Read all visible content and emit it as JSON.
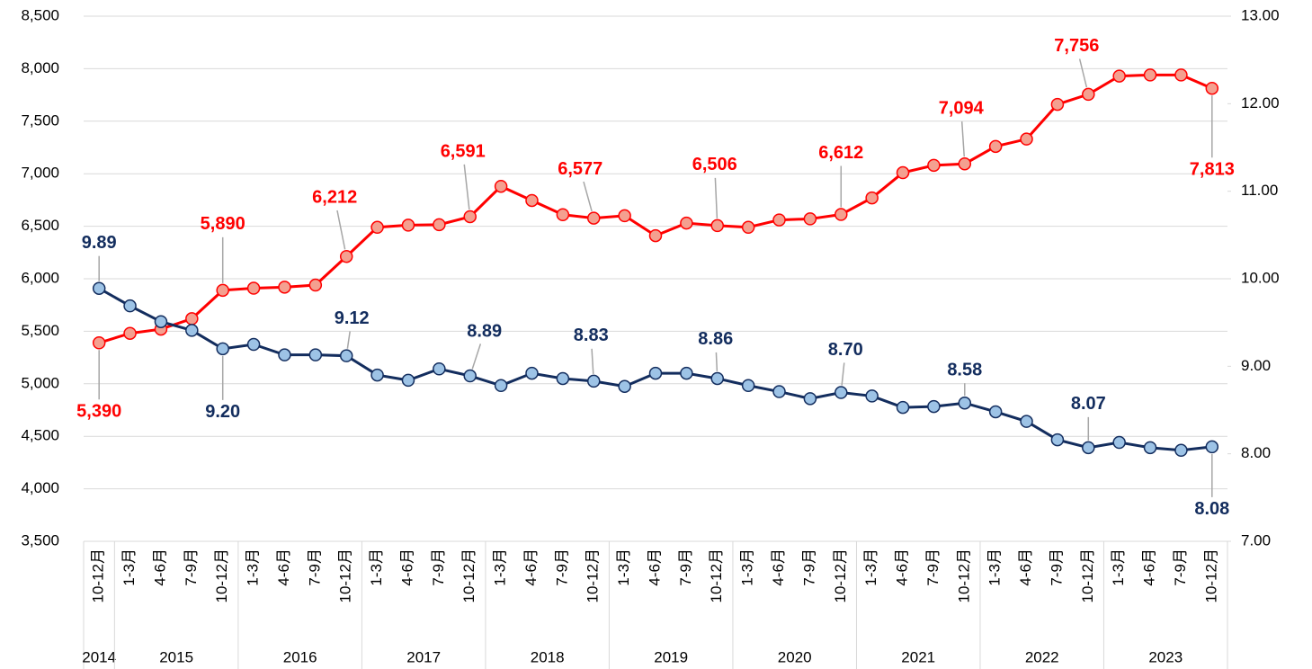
{
  "chart_data": {
    "type": "line",
    "categories": [
      "10-12月",
      "1-3月",
      "4-6月",
      "7-9月",
      "10-12月",
      "1-3月",
      "4-6月",
      "7-9月",
      "10-12月",
      "1-3月",
      "4-6月",
      "7-9月",
      "10-12月",
      "1-3月",
      "4-6月",
      "7-9月",
      "10-12月",
      "1-3月",
      "4-6月",
      "7-9月",
      "10-12月",
      "1-3月",
      "4-6月",
      "7-9月",
      "10-12月",
      "1-3月",
      "4-6月",
      "7-9月",
      "10-12月",
      "1-3月",
      "4-6月",
      "7-9月",
      "10-12月",
      "1-3月",
      "4-6月",
      "7-9月",
      "10-12月"
    ],
    "years": [
      "2014",
      "2015",
      "2015",
      "2015",
      "2015",
      "2016",
      "2016",
      "2016",
      "2016",
      "2017",
      "2017",
      "2017",
      "2017",
      "2018",
      "2018",
      "2018",
      "2018",
      "2019",
      "2019",
      "2019",
      "2019",
      "2020",
      "2020",
      "2020",
      "2020",
      "2021",
      "2021",
      "2021",
      "2021",
      "2022",
      "2022",
      "2022",
      "2022",
      "2023",
      "2023",
      "2023",
      "2023"
    ],
    "ylim": [
      3500,
      8500
    ],
    "yticks": [
      {
        "value": 3500,
        "label": "3,500"
      },
      {
        "value": 4000,
        "label": "4,000"
      },
      {
        "value": 4500,
        "label": "4,500"
      },
      {
        "value": 5000,
        "label": "5,000"
      },
      {
        "value": 5500,
        "label": "5,500"
      },
      {
        "value": 6000,
        "label": "6,000"
      },
      {
        "value": 6500,
        "label": "6,500"
      },
      {
        "value": 7000,
        "label": "7,000"
      },
      {
        "value": 7500,
        "label": "7,500"
      },
      {
        "value": 8000,
        "label": "8,000"
      },
      {
        "value": 8500,
        "label": "8,500"
      }
    ],
    "y2lim": [
      7,
      13
    ],
    "y2ticks": [
      {
        "value": 7,
        "label": "7.00"
      },
      {
        "value": 8,
        "label": "8.00"
      },
      {
        "value": 9,
        "label": "9.00"
      },
      {
        "value": 10,
        "label": "10.00"
      },
      {
        "value": 11,
        "label": "11.00"
      },
      {
        "value": 12,
        "label": "12.00"
      },
      {
        "value": 13,
        "label": "13.00"
      }
    ],
    "grid": true,
    "series": [
      {
        "color": "#ff0000",
        "marker_color": "#f4a090",
        "axis": "y",
        "values": [
          5390,
          5480,
          5520,
          5620,
          5890,
          5910,
          5920,
          5940,
          6212,
          6490,
          6510,
          6515,
          6591,
          6880,
          6745,
          6610,
          6577,
          6600,
          6410,
          6530,
          6506,
          6490,
          6560,
          6570,
          6612,
          6770,
          7010,
          7080,
          7094,
          7260,
          7330,
          7660,
          7756,
          7930,
          7940,
          7940,
          7813
        ],
        "value_labels": [
          "5,390",
          null,
          null,
          null,
          "5,890",
          null,
          null,
          null,
          "6,212",
          null,
          null,
          null,
          "6,591",
          null,
          null,
          null,
          "6,577",
          null,
          null,
          null,
          "6,506",
          null,
          null,
          null,
          "6,612",
          null,
          null,
          null,
          "7,094",
          null,
          null,
          null,
          "7,756",
          null,
          null,
          null,
          "7,813"
        ]
      },
      {
        "color": "#132d5e",
        "marker_color": "#9dc3e6",
        "axis": "y2",
        "values": [
          9.89,
          9.69,
          9.51,
          9.41,
          9.2,
          9.25,
          9.13,
          9.13,
          9.12,
          8.9,
          8.84,
          8.97,
          8.89,
          8.78,
          8.92,
          8.86,
          8.83,
          8.77,
          8.92,
          8.92,
          8.86,
          8.78,
          8.71,
          8.63,
          8.7,
          8.66,
          8.53,
          8.54,
          8.58,
          8.48,
          8.37,
          8.16,
          8.07,
          8.13,
          8.07,
          8.04,
          8.08
        ],
        "value_labels": [
          "9.89",
          null,
          null,
          null,
          "9.20",
          null,
          null,
          null,
          "9.12",
          null,
          null,
          null,
          "8.89",
          null,
          null,
          null,
          "8.83",
          null,
          null,
          null,
          "8.86",
          null,
          null,
          null,
          "8.70",
          null,
          null,
          null,
          "8.58",
          null,
          null,
          null,
          "8.07",
          null,
          null,
          null,
          "8.08"
        ]
      }
    ]
  }
}
